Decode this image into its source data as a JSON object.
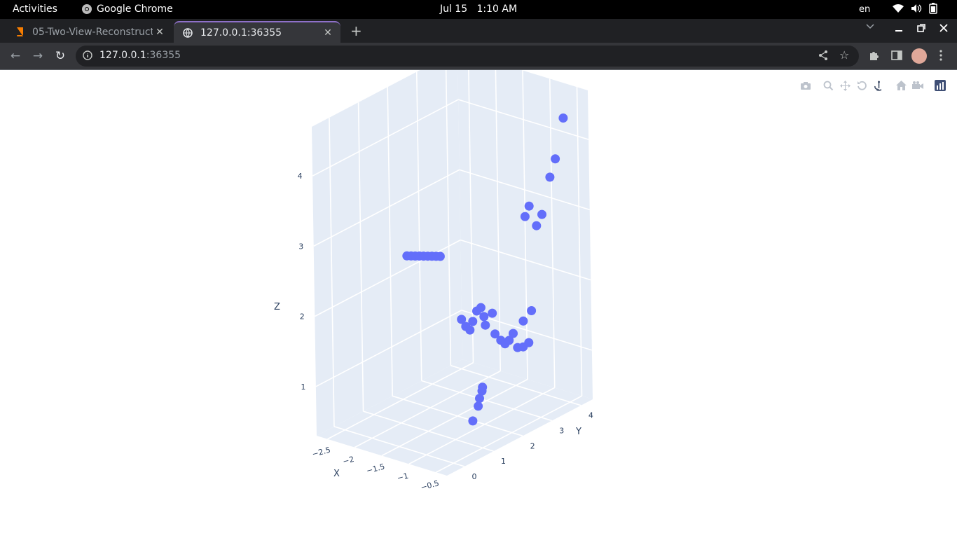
{
  "system": {
    "activities": "Activities",
    "app_name": "Google Chrome",
    "date": "Jul 15",
    "time": "1:10 AM",
    "lang": "en"
  },
  "browser": {
    "tabs": [
      {
        "title": "05-Two-View-Reconstruct",
        "active": false
      },
      {
        "title": "127.0.0.1:36355",
        "active": true
      }
    ],
    "url_host": "127.0.0.1",
    "url_port": ":36355"
  },
  "chart_data": {
    "type": "scatter3d",
    "marker_color": "#636efa",
    "axes": {
      "x": {
        "title": "X",
        "ticks": [
          "−2.5",
          "−2",
          "−1.5",
          "−1",
          "−0.5"
        ]
      },
      "y": {
        "title": "Y",
        "ticks": [
          "0",
          "1",
          "2",
          "3",
          "4"
        ]
      },
      "z": {
        "title": "Z",
        "ticks": [
          "1",
          "2",
          "3",
          "4"
        ]
      }
    },
    "points": [
      {
        "x": -2.5,
        "y": 2.2,
        "z": 2.3
      },
      {
        "x": -2.45,
        "y": 2.25,
        "z": 2.3
      },
      {
        "x": -2.4,
        "y": 2.3,
        "z": 2.3
      },
      {
        "x": -2.35,
        "y": 2.35,
        "z": 2.3
      },
      {
        "x": -2.3,
        "y": 2.4,
        "z": 2.3
      },
      {
        "x": -2.25,
        "y": 2.45,
        "z": 2.3
      },
      {
        "x": -2.2,
        "y": 2.5,
        "z": 2.3
      },
      {
        "x": -2.15,
        "y": 2.55,
        "z": 2.3
      },
      {
        "x": -2.1,
        "y": 2.6,
        "z": 2.3
      },
      {
        "x": -1.4,
        "y": 2.0,
        "z": 1.7
      },
      {
        "x": -1.35,
        "y": 2.05,
        "z": 1.6
      },
      {
        "x": -1.3,
        "y": 2.1,
        "z": 1.55
      },
      {
        "x": -1.3,
        "y": 2.2,
        "z": 1.65
      },
      {
        "x": -1.25,
        "y": 2.25,
        "z": 1.8
      },
      {
        "x": -1.2,
        "y": 2.3,
        "z": 1.85
      },
      {
        "x": -1.2,
        "y": 2.4,
        "z": 1.7
      },
      {
        "x": -1.15,
        "y": 2.35,
        "z": 1.6
      },
      {
        "x": -1.1,
        "y": 2.5,
        "z": 1.75
      },
      {
        "x": -1.0,
        "y": 2.4,
        "z": 1.5
      },
      {
        "x": -0.95,
        "y": 2.5,
        "z": 1.4
      },
      {
        "x": -0.9,
        "y": 2.55,
        "z": 1.35
      },
      {
        "x": -0.85,
        "y": 2.6,
        "z": 1.4
      },
      {
        "x": -0.8,
        "y": 2.65,
        "z": 1.5
      },
      {
        "x": -0.75,
        "y": 2.7,
        "z": 1.3
      },
      {
        "x": -0.7,
        "y": 2.8,
        "z": 1.3
      },
      {
        "x": -0.65,
        "y": 2.9,
        "z": 1.35
      },
      {
        "x": -0.8,
        "y": 3.0,
        "z": 1.6
      },
      {
        "x": -0.7,
        "y": 3.1,
        "z": 1.75
      },
      {
        "x": -0.9,
        "y": 3.3,
        "z": 3.0
      },
      {
        "x": -0.85,
        "y": 3.35,
        "z": 3.15
      },
      {
        "x": -0.8,
        "y": 3.5,
        "z": 2.85
      },
      {
        "x": -0.75,
        "y": 3.6,
        "z": 3.0
      },
      {
        "x": -0.7,
        "y": 3.8,
        "z": 3.5
      },
      {
        "x": -0.65,
        "y": 3.9,
        "z": 3.75
      },
      {
        "x": -0.6,
        "y": 4.1,
        "z": 4.3
      },
      {
        "x": -0.3,
        "y": 0.5,
        "z": 1.05
      },
      {
        "x": -0.3,
        "y": 0.55,
        "z": 1.15
      },
      {
        "x": -0.28,
        "y": 0.6,
        "z": 1.25
      },
      {
        "x": -0.28,
        "y": 0.62,
        "z": 1.3
      },
      {
        "x": -0.35,
        "y": 0.4,
        "z": 0.85
      }
    ]
  }
}
